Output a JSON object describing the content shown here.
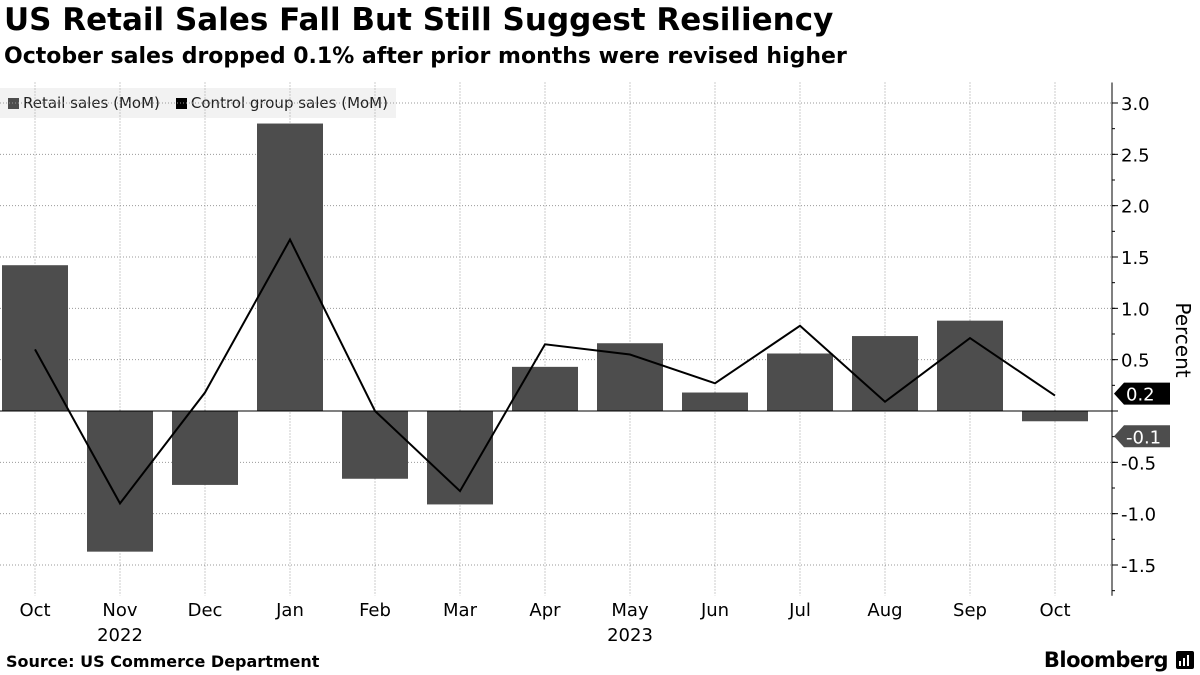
{
  "colors": {
    "bar": "#4d4d4d",
    "line": "#000000",
    "grid": "#999999",
    "legend_bg": "#f2f2f2",
    "label_dark": "#000000",
    "label_grey": "#4d4d4d"
  },
  "header": {
    "title": "US Retail Sales Fall But Still Suggest Resiliency",
    "subtitle": "October sales dropped 0.1% after prior months were revised higher"
  },
  "footer": {
    "source": "Source: US Commerce Department",
    "brand": "Bloomberg"
  },
  "chart_data": {
    "type": "bar",
    "categories": [
      "Oct",
      "Nov",
      "Dec",
      "Jan",
      "Feb",
      "Mar",
      "Apr",
      "May",
      "Jun",
      "Jul",
      "Aug",
      "Sep",
      "Oct"
    ],
    "year_labels": [
      {
        "label": "2022",
        "category_index": 1
      },
      {
        "label": "2023",
        "category_index": 7
      }
    ],
    "series": [
      {
        "name": "Retail sales (MoM)",
        "type": "bar",
        "values": [
          1.42,
          -1.37,
          -0.72,
          2.8,
          -0.66,
          -0.91,
          0.43,
          0.66,
          0.18,
          0.56,
          0.73,
          0.88,
          -0.1
        ]
      },
      {
        "name": "Control group sales (MoM)",
        "type": "line",
        "values": [
          0.6,
          -0.9,
          0.18,
          1.67,
          0.0,
          -0.78,
          0.65,
          0.55,
          0.27,
          0.83,
          0.09,
          0.71,
          0.15
        ]
      }
    ],
    "end_labels": [
      {
        "text": "0.2",
        "series": 1,
        "value": 0.15,
        "style": "dark"
      },
      {
        "text": "-0.1",
        "series": 0,
        "value": -0.1,
        "style": "grey"
      }
    ],
    "ylim": [
      -1.8,
      3.2
    ],
    "yticks": [
      {
        "value": 3.0,
        "label": "3.0"
      },
      {
        "value": 2.5,
        "label": "2.5"
      },
      {
        "value": 2.0,
        "label": "2.0"
      },
      {
        "value": 1.5,
        "label": "1.5"
      },
      {
        "value": 1.0,
        "label": "1.0"
      },
      {
        "value": 0.5,
        "label": "0.5"
      },
      {
        "value": -0.5,
        "label": "-0.5"
      },
      {
        "value": -1.0,
        "label": "-1.0"
      },
      {
        "value": -1.5,
        "label": "-1.5"
      }
    ],
    "ylabel": "Percent",
    "xlabel": "",
    "grid": true,
    "legend_position": "top-left",
    "y_axis_side": "right"
  }
}
